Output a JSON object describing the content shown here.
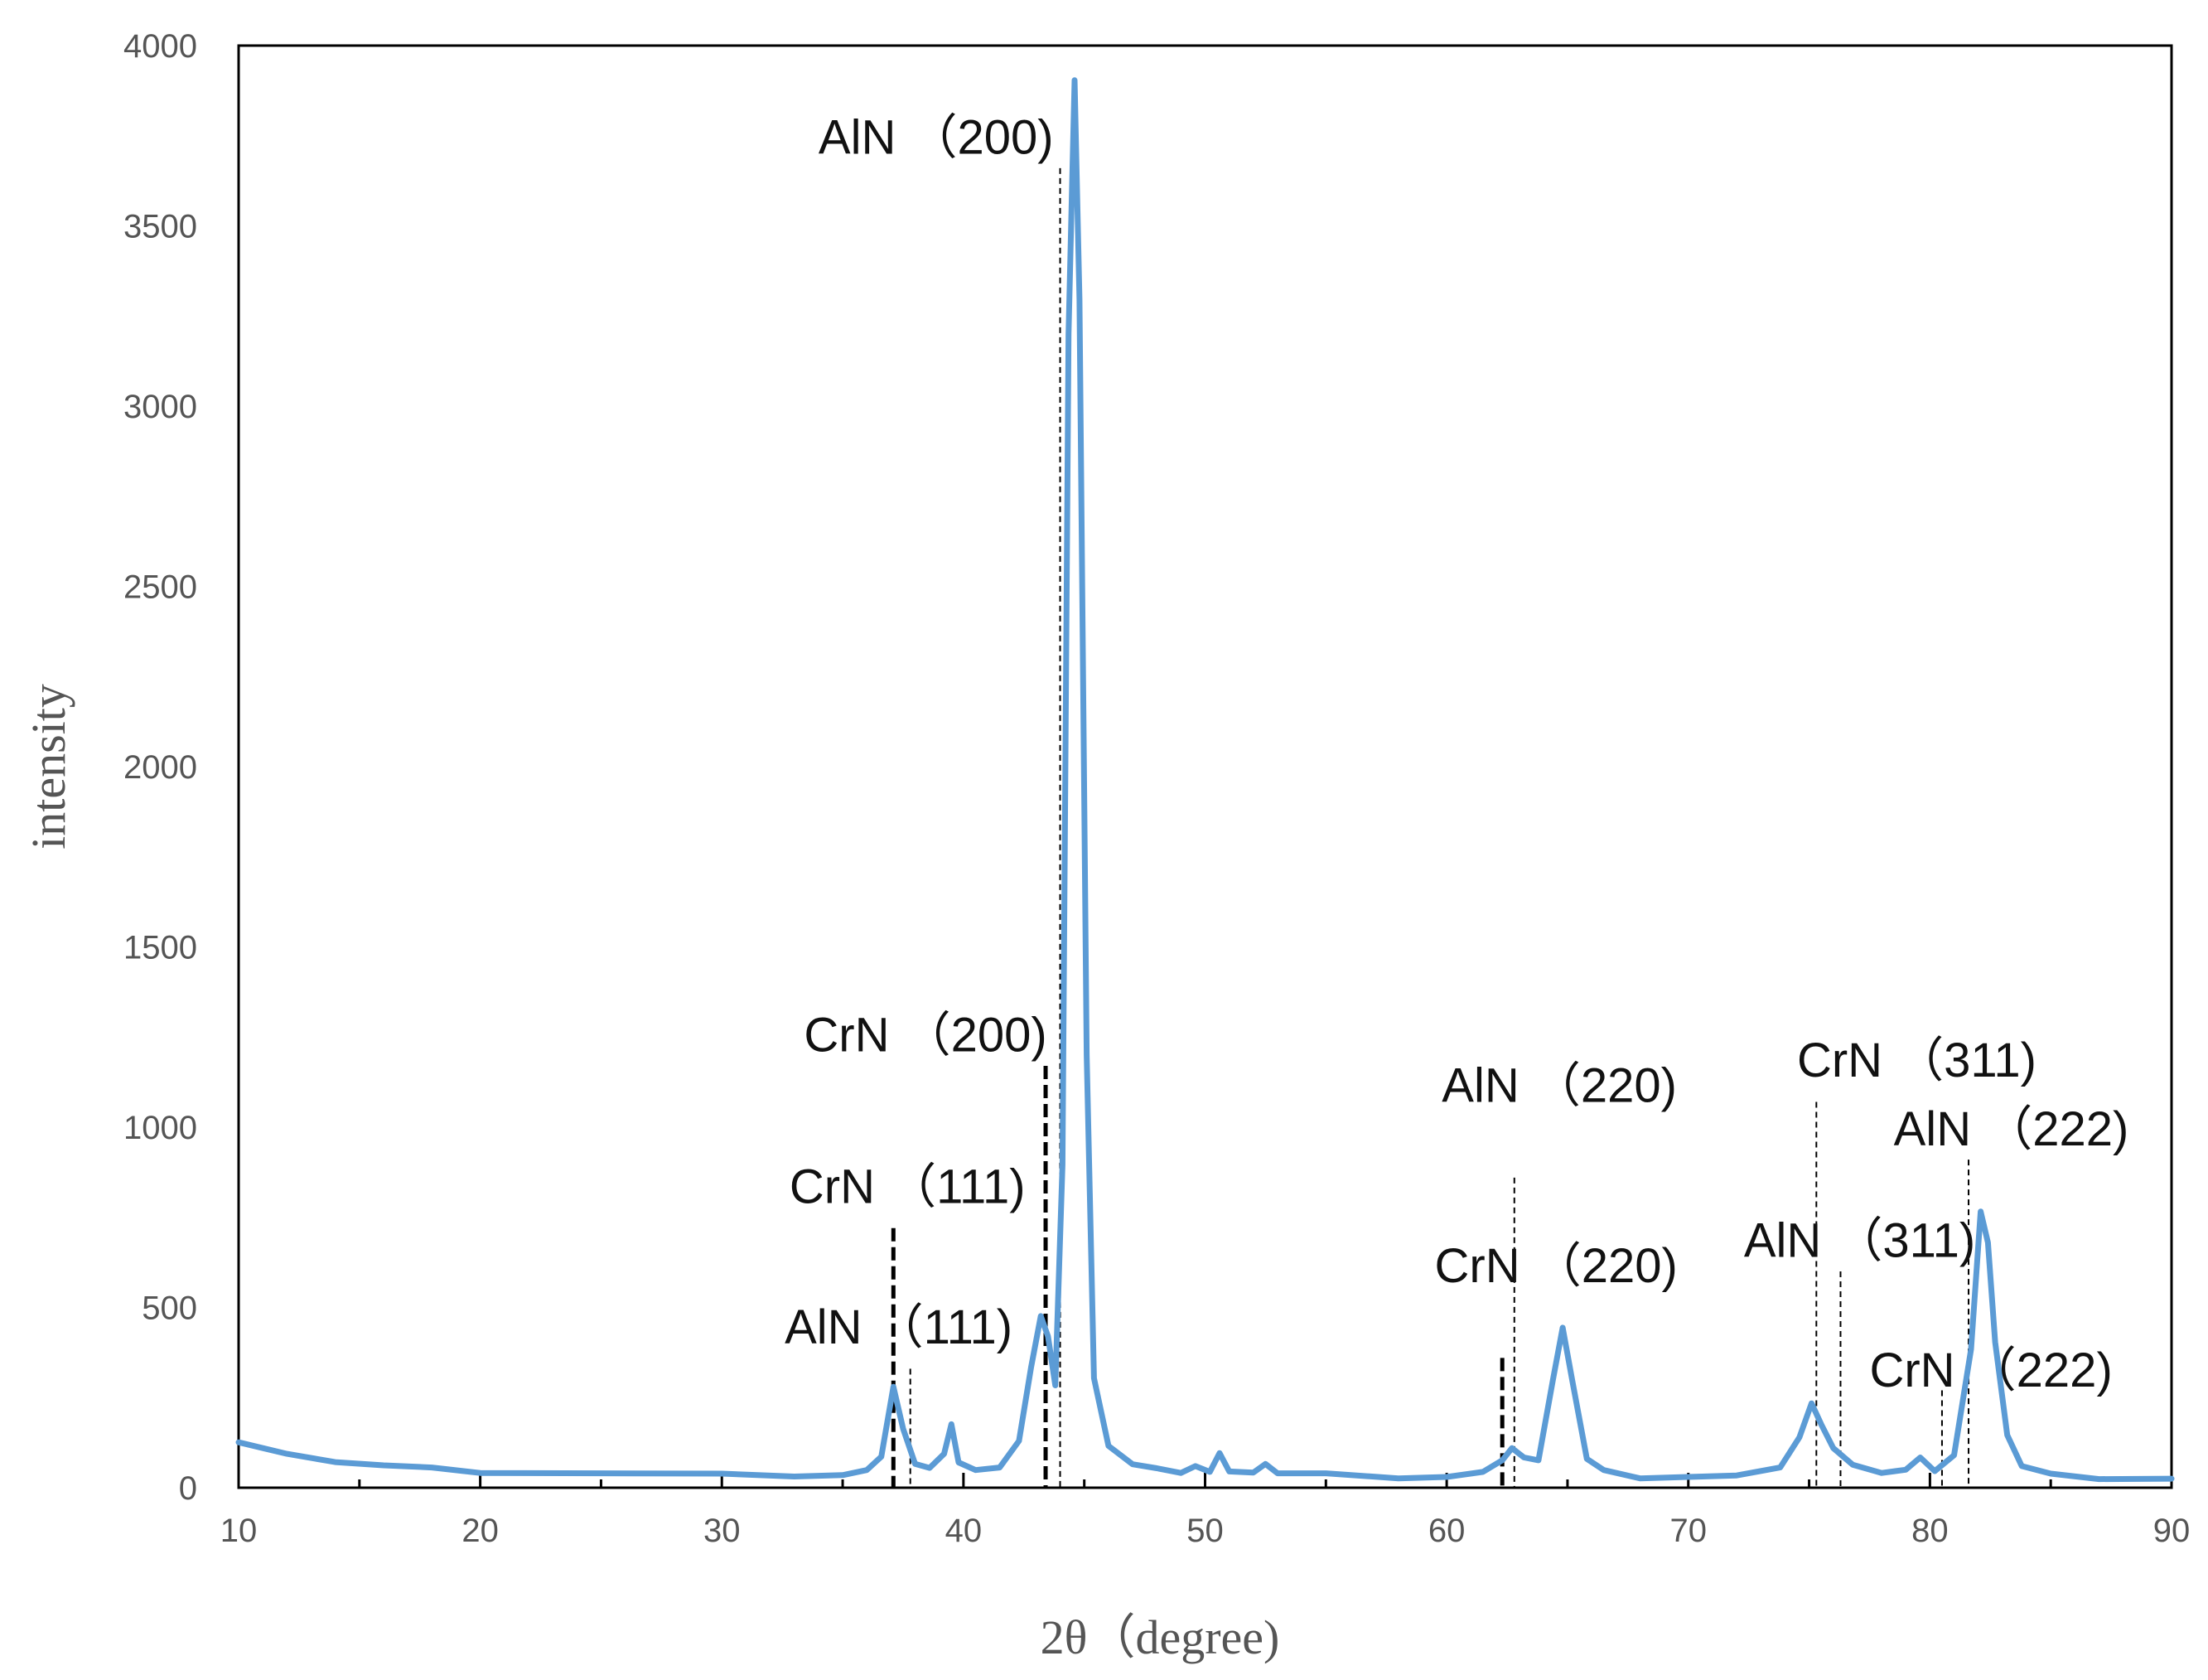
{
  "chart_data": {
    "type": "line",
    "title": "",
    "xlabel": "2θ（degree)",
    "ylabel": "intensity",
    "xlim": [
      10,
      90
    ],
    "ylim": [
      0,
      4000
    ],
    "x_ticks": [
      10,
      20,
      30,
      40,
      50,
      60,
      70,
      80,
      90
    ],
    "y_ticks": [
      0,
      500,
      1000,
      1500,
      2000,
      2500,
      3000,
      3500,
      4000
    ],
    "grid": false,
    "legend": "none",
    "line_color": "#5B9BD5",
    "series": [
      {
        "values_x": [
          10,
          11,
          12,
          14,
          16,
          18,
          20,
          25,
          30,
          33,
          35,
          36,
          36.6,
          37.1,
          37.5,
          38,
          38.6,
          39.2,
          39.5,
          39.8,
          40.5,
          41.5,
          42.3,
          42.8,
          43.2,
          43.5,
          43.8,
          44.1,
          44.35,
          44.6,
          44.8,
          45.1,
          45.4,
          46,
          47,
          48,
          49,
          49.6,
          50.2,
          50.6,
          51,
          52,
          52.5,
          53,
          55,
          58,
          60,
          61.5,
          62.3,
          62.7,
          63.2,
          63.8,
          64.4,
          64.8,
          65.2,
          65.8,
          66.5,
          68,
          70,
          72,
          73.8,
          74.6,
          75.1,
          75.5,
          76,
          76.8,
          78,
          79,
          79.6,
          80.2,
          81,
          81.7,
          82.1,
          82.4,
          82.7,
          83.2,
          83.8,
          85,
          87,
          90
        ],
        "values_y": [
          130,
          110,
          90,
          75,
          62,
          52,
          45,
          40,
          35,
          35,
          35,
          45,
          90,
          280,
          160,
          70,
          55,
          90,
          180,
          70,
          45,
          60,
          130,
          330,
          480,
          420,
          280,
          900,
          3200,
          3900,
          3300,
          1200,
          300,
          120,
          65,
          50,
          45,
          60,
          40,
          100,
          45,
          38,
          70,
          40,
          36,
          30,
          30,
          40,
          80,
          110,
          80,
          80,
          300,
          440,
          300,
          80,
          45,
          30,
          30,
          30,
          60,
          140,
          230,
          180,
          110,
          60,
          45,
          50,
          80,
          50,
          90,
          380,
          770,
          680,
          400,
          150,
          60,
          35,
          28,
          25
        ]
      }
    ],
    "reference_lines": [
      {
        "x": 37.1,
        "top": 720,
        "style": "thick-dash"
      },
      {
        "x": 37.8,
        "top": 330,
        "style": "thin-dash"
      },
      {
        "x": 43.4,
        "top": 1170,
        "style": "thick-dash"
      },
      {
        "x": 44.0,
        "top": 3660,
        "style": "thin-dash"
      },
      {
        "x": 62.3,
        "top": 360,
        "style": "thick-dash"
      },
      {
        "x": 62.8,
        "top": 860,
        "style": "thin-dash"
      },
      {
        "x": 75.3,
        "top": 1070,
        "style": "thin-dash"
      },
      {
        "x": 76.3,
        "top": 600,
        "style": "thin-dash"
      },
      {
        "x": 80.5,
        "top": 270,
        "style": "thin-dash"
      },
      {
        "x": 81.6,
        "top": 910,
        "style": "thin-dash"
      }
    ],
    "annotations": [
      {
        "text": "AlN （200)",
        "x": 34.0,
        "y": 3700
      },
      {
        "text": "CrN （200)",
        "x": 33.4,
        "y": 1210
      },
      {
        "text": "CrN （111)",
        "x": 32.8,
        "y": 790
      },
      {
        "text": "AlN （111)",
        "x": 32.6,
        "y": 400
      },
      {
        "text": "AlN （220)",
        "x": 59.8,
        "y": 1070
      },
      {
        "text": "CrN （220)",
        "x": 59.5,
        "y": 570
      },
      {
        "text": "CrN （311)",
        "x": 74.5,
        "y": 1140
      },
      {
        "text": "AlN （311)",
        "x": 72.3,
        "y": 640
      },
      {
        "text": "AlN （222)",
        "x": 78.5,
        "y": 950
      },
      {
        "text": "CrN （222)",
        "x": 77.5,
        "y": 280
      }
    ]
  }
}
